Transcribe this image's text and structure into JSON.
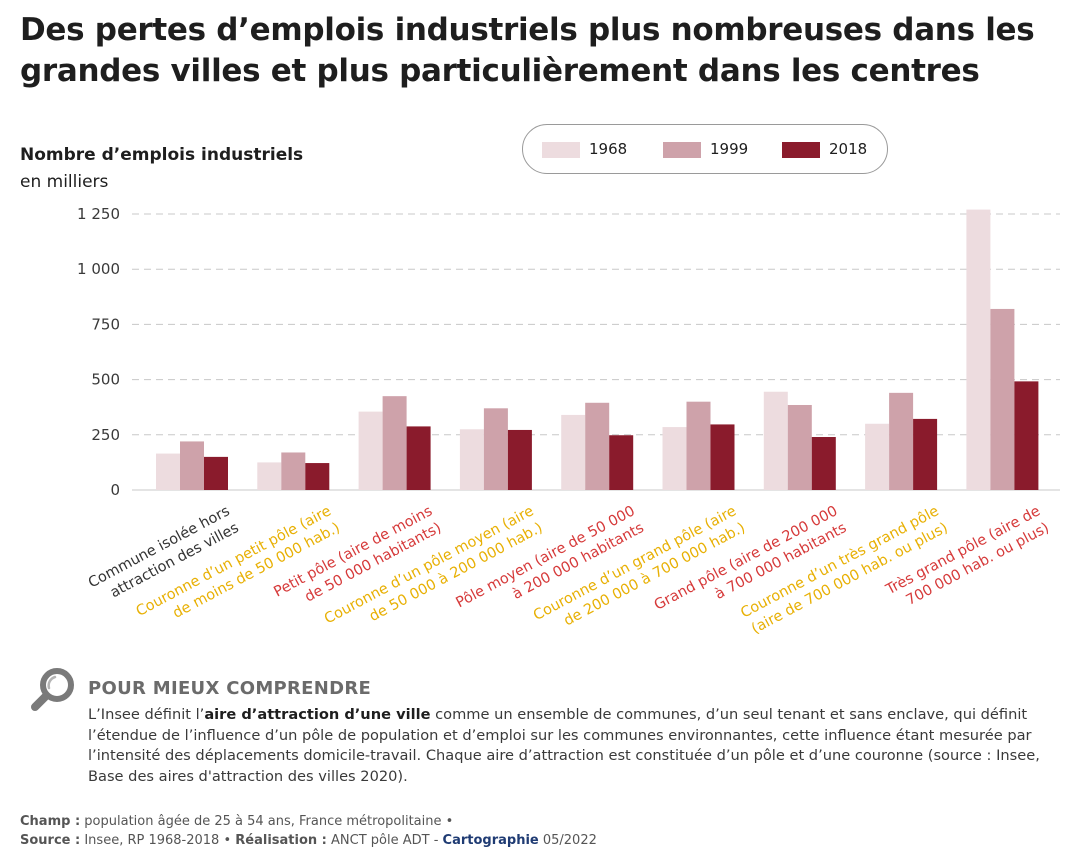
{
  "title": "Des pertes d’emplois industriels plus nombreuses dans les grandes villes et plus particulièrement dans les centres",
  "chart_data": {
    "type": "bar",
    "ylabel": "Nombre d’emplois industriels",
    "yunit": "en milliers",
    "ylim": [
      0,
      1300
    ],
    "yticks": [
      0,
      250,
      500,
      750,
      1000,
      1250
    ],
    "ytick_labels": [
      "0",
      "250",
      "500",
      "750",
      "1 000",
      "1 250"
    ],
    "grid": true,
    "legend_position": "top-center",
    "categories": [
      "Commune isolée hors attraction des villes",
      "Couronne d’un petit pôle (aire de moins de 50 000 hab.)",
      "Petit pôle (aire de moins de 50 000 habitants)",
      "Couronne d’un pôle moyen (aire de 50 000 à 200 000 hab.)",
      "Pôle moyen (aire de 50 000 à 200 000 habitants",
      "Couronne d’un grand pôle (aire de 200 000 à 700 000 hab.)",
      "Grand pôle (aire de 200 000 à 700 000 habitants",
      "Couronne d’un très grand pôle (aire de 700 000 hab. ou plus)",
      "Très grand pôle (aire de 700 000 hab. ou plus)"
    ],
    "category_lines": [
      [
        "Commune isolée hors",
        "attraction des villes"
      ],
      [
        "Couronne d’un petit pôle (aire",
        "de moins de 50 000 hab.)"
      ],
      [
        "Petit pôle (aire de moins",
        "de 50 000 habitants)"
      ],
      [
        "Couronne d’un pôle moyen (aire",
        "de 50 000 à 200 000 hab.)"
      ],
      [
        "Pôle moyen (aire de 50 000",
        "à 200 000 habitants"
      ],
      [
        "Couronne d’un grand pôle (aire",
        "de 200 000 à 700 000 hab.)"
      ],
      [
        "Grand pôle (aire de 200 000",
        "à 700 000 habitants"
      ],
      [
        "Couronne d’un très grand pôle",
        "(aire de 700 000 hab. ou plus)"
      ],
      [
        "Très grand pôle (aire de",
        "700 000 hab. ou plus)"
      ]
    ],
    "category_colors": [
      "#333333",
      "#e8b004",
      "#d63a3a",
      "#e8b004",
      "#d63a3a",
      "#e8b004",
      "#d63a3a",
      "#e8b004",
      "#d63a3a"
    ],
    "series": [
      {
        "name": "1968",
        "color": "#eddcdf",
        "values": [
          165,
          125,
          355,
          275,
          340,
          285,
          445,
          300,
          1270
        ]
      },
      {
        "name": "1999",
        "color": "#cea2aa",
        "values": [
          220,
          170,
          425,
          370,
          395,
          400,
          385,
          440,
          820
        ]
      },
      {
        "name": "2018",
        "color": "#8a1b2c",
        "values": [
          150,
          122,
          288,
          272,
          248,
          297,
          240,
          322,
          492
        ]
      }
    ]
  },
  "understand": {
    "heading": "POUR MIEUX COMPRENDRE",
    "text_before": "L’Insee définit l’",
    "text_bold": "aire d’attraction d’une ville",
    "text_after": " comme un ensemble de communes, d’un seul tenant et sans enclave, qui définit l’étendue de l’influence d’un pôle de population et d’emploi sur les communes environnantes, cette influence étant mesurée par l’intensité des déplacements domicile-travail. Chaque aire d’attraction est constituée d’un pôle et d’une couronne (source : Insee, Base des aires d'attraction des villes 2020)."
  },
  "footer": {
    "champ_label": "Champ :",
    "champ_text": " population âgée de 25 à 54 ans, France métropolitaine •",
    "source_label": "Source :",
    "source_text": " Insee, RP 1968-2018 • ",
    "realisation_label": "Réalisation :",
    "realisation_text": " ANCT pôle ADT - ",
    "cartographie": "Cartographie",
    "date": " 05/2022"
  },
  "icons": {
    "understand": "magnifier-icon"
  }
}
